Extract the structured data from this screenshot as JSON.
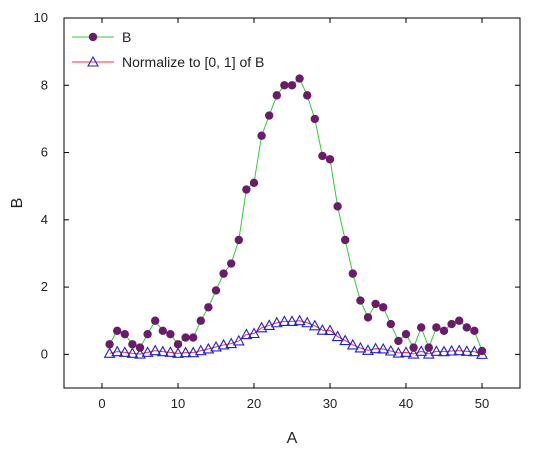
{
  "chart_data": {
    "type": "scatter",
    "xlabel": "A",
    "ylabel": "B",
    "xlim": [
      -5,
      55
    ],
    "ylim": [
      -1,
      10
    ],
    "x_ticks": [
      0,
      10,
      20,
      30,
      40,
      50
    ],
    "y_ticks": [
      0,
      2,
      4,
      6,
      8,
      10
    ],
    "grid": false,
    "legend_position": "top-left",
    "x": [
      1,
      2,
      3,
      4,
      5,
      6,
      7,
      8,
      9,
      10,
      11,
      12,
      13,
      14,
      15,
      16,
      17,
      18,
      19,
      20,
      21,
      22,
      23,
      24,
      25,
      26,
      27,
      28,
      29,
      30,
      31,
      32,
      33,
      34,
      35,
      36,
      37,
      38,
      39,
      40,
      41,
      42,
      43,
      44,
      45,
      46,
      47,
      48,
      49,
      50
    ],
    "series": [
      {
        "name": "B",
        "color": "#6a1b6a",
        "line_color": "#33cc33",
        "marker": "filled-circle",
        "values": [
          0.3,
          0.7,
          0.6,
          0.3,
          0.2,
          0.6,
          1.0,
          0.7,
          0.6,
          0.3,
          0.5,
          0.5,
          1.0,
          1.4,
          1.9,
          2.4,
          2.7,
          3.4,
          4.9,
          5.1,
          6.5,
          7.1,
          7.7,
          8.0,
          8.0,
          8.2,
          7.7,
          7.0,
          5.9,
          5.8,
          4.4,
          3.4,
          2.4,
          1.6,
          1.1,
          1.5,
          1.4,
          0.9,
          0.4,
          0.6,
          0.2,
          0.8,
          0.2,
          0.8,
          0.7,
          0.9,
          1.0,
          0.8,
          0.7,
          0.1
        ]
      },
      {
        "name": "Normalize to [0, 1] of B",
        "color": "#2222cc",
        "line_color": "#ff3333",
        "marker": "open-triangle",
        "values": [
          0.03,
          0.08,
          0.06,
          0.03,
          0.01,
          0.06,
          0.11,
          0.08,
          0.06,
          0.03,
          0.05,
          0.05,
          0.11,
          0.16,
          0.22,
          0.28,
          0.32,
          0.4,
          0.59,
          0.62,
          0.79,
          0.86,
          0.94,
          0.98,
          0.98,
          1.0,
          0.94,
          0.85,
          0.72,
          0.71,
          0.53,
          0.41,
          0.28,
          0.19,
          0.12,
          0.17,
          0.16,
          0.1,
          0.04,
          0.06,
          0.01,
          0.09,
          0.01,
          0.09,
          0.08,
          0.1,
          0.11,
          0.09,
          0.08,
          0.0
        ]
      }
    ]
  }
}
